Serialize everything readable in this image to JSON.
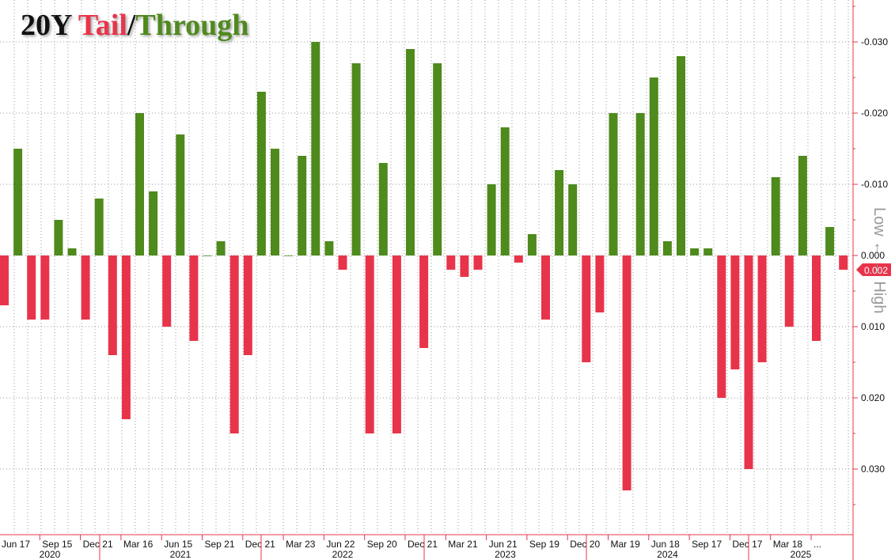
{
  "title": {
    "main": "20Y",
    "tail": "Tail",
    "slash": "/",
    "through": "Through"
  },
  "colors": {
    "through": "#4e8a1c",
    "tail": "#e8344a",
    "grid": "#9a9a9a",
    "axis": "#e8344a"
  },
  "chart_data": {
    "type": "bar",
    "title": "20Y Tail/Through",
    "ylabel": "Low ← → High",
    "ylim": [
      -0.037,
      0.035
    ],
    "y_inverted": true,
    "y_ticks": [
      "-0.030",
      "-0.020",
      "-0.010",
      "0.000",
      "0.010",
      "0.020",
      "0.030"
    ],
    "y_tick_values": [
      -0.03,
      -0.02,
      -0.01,
      0.0,
      0.01,
      0.02,
      0.03
    ],
    "last_value_label": "0.002",
    "x_tick_labels": [
      "Jun 17",
      "Sep 15",
      "Dec 21",
      "Mar 16",
      "Jun 15",
      "Sep 21",
      "Dec 21",
      "Mar 23",
      "Jun 22",
      "Sep 20",
      "Dec 21",
      "Mar 21",
      "Jun 21",
      "Sep 19",
      "Dec 20",
      "Mar 19",
      "Jun 18",
      "Sep 17",
      "Dec 17",
      "Mar 18",
      "..."
    ],
    "year_labels": [
      "2020",
      "2021",
      "2022",
      "2023",
      "2024",
      "2025"
    ],
    "values": [
      0.007,
      -0.015,
      0.009,
      0.009,
      -0.005,
      -0.001,
      0.009,
      -0.008,
      0.014,
      0.023,
      -0.02,
      -0.009,
      0.01,
      -0.017,
      0.012,
      0.0,
      -0.002,
      0.025,
      0.014,
      -0.023,
      -0.015,
      0.0,
      -0.014,
      -0.03,
      -0.002,
      0.002,
      -0.027,
      0.025,
      -0.013,
      0.025,
      -0.029,
      0.013,
      -0.027,
      0.002,
      0.003,
      0.002,
      -0.01,
      -0.018,
      0.001,
      -0.003,
      0.009,
      -0.012,
      -0.01,
      0.015,
      0.008,
      -0.02,
      0.033,
      -0.02,
      -0.025,
      -0.002,
      -0.028,
      -0.001,
      -0.001,
      0.02,
      0.016,
      0.03,
      0.015,
      -0.011,
      0.01,
      -0.014,
      0.012,
      -0.004,
      0.002
    ]
  }
}
